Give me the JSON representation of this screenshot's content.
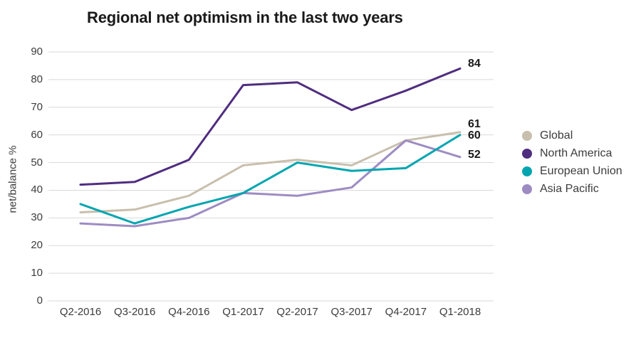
{
  "title": "Regional net optimism in the last two years",
  "chart_data": {
    "type": "line",
    "title": "Regional net optimism in the last two years",
    "ylabel": "net/balance %",
    "ylim": [
      0,
      90
    ],
    "yticks": [
      0,
      10,
      20,
      30,
      40,
      50,
      60,
      70,
      80,
      90
    ],
    "grid": "horizontal",
    "legend_position": "right",
    "categories": [
      "Q2-2016",
      "Q3-2016",
      "Q4-2016",
      "Q1-2017",
      "Q2-2017",
      "Q3-2017",
      "Q4-2017",
      "Q1-2018"
    ],
    "series": [
      {
        "name": "Global",
        "color": "#c8bfad",
        "values": [
          32,
          33,
          38,
          49,
          51,
          49,
          58,
          61
        ],
        "end_label": "61"
      },
      {
        "name": "North America",
        "color": "#4f2d7f",
        "values": [
          42,
          43,
          51,
          78,
          79,
          69,
          76,
          84
        ],
        "end_label": "84"
      },
      {
        "name": "European Union",
        "color": "#00a5b0",
        "values": [
          35,
          28,
          34,
          39,
          50,
          47,
          48,
          60
        ],
        "end_label": "60"
      },
      {
        "name": "Asia Pacific",
        "color": "#9d8cc2",
        "values": [
          28,
          27,
          30,
          39,
          38,
          41,
          58,
          52
        ],
        "end_label": "52"
      }
    ],
    "colors": {
      "grid": "#d9d9d9",
      "axis_text": "#3c3c3c",
      "label_text": "#1a1a1a"
    }
  }
}
